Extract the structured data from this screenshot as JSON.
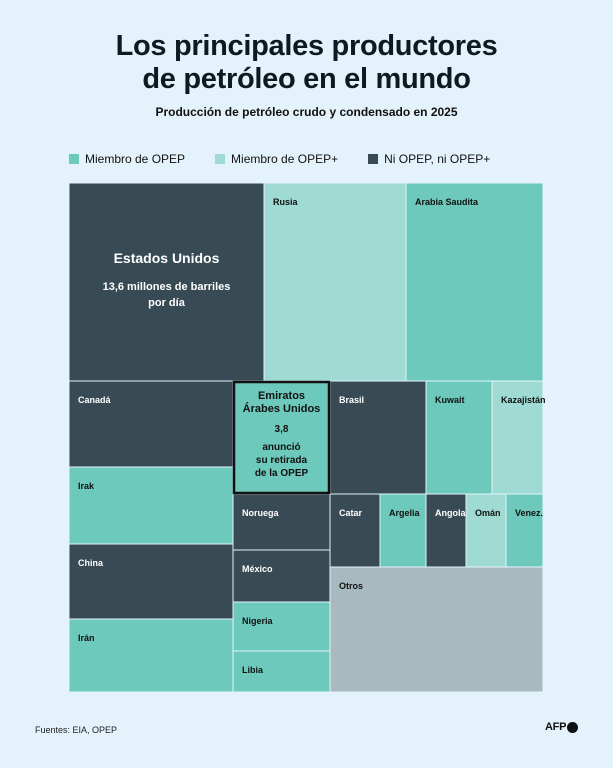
{
  "header": {
    "title_line1": "Los principales productores",
    "title_line2": "de petróleo en el mundo",
    "subtitle": "Producción de petróleo crudo y condensado en 2025"
  },
  "legend": [
    {
      "label": "Miembro de OPEP",
      "color": "#6cc9bb"
    },
    {
      "label": "Miembro de OPEP+",
      "color": "#9fdbd2"
    },
    {
      "label": "Ni OPEP, ni OPEP+",
      "color": "#384a54"
    }
  ],
  "colors": {
    "opep": "#6cc9bb",
    "opep_plus": "#9fdbd2",
    "none": "#384a54",
    "others": "#a8b9bf",
    "border": "#e3f2fb",
    "highlight_border": "#111111"
  },
  "chart_data": {
    "type": "treemap",
    "title": "Los principales productores de petróleo en el mundo",
    "subtitle": "Producción de petróleo crudo y condensado en 2025",
    "unit": "millones de barriles por día",
    "items": [
      {
        "name": "Estados Unidos",
        "group": "none",
        "value_label": "13,6 millones de barriles por día"
      },
      {
        "name": "Rusia",
        "group": "opep_plus"
      },
      {
        "name": "Arabia Saudita",
        "group": "opep"
      },
      {
        "name": "Canadá",
        "group": "none"
      },
      {
        "name": "Emiratos Árabes Unidos",
        "group": "opep",
        "value_label": "3,8",
        "annotation": "anunció su retirada de la OPEP",
        "highlight": true
      },
      {
        "name": "Brasil",
        "group": "none"
      },
      {
        "name": "Kuwait",
        "group": "opep"
      },
      {
        "name": "Kazajistán",
        "group": "opep_plus"
      },
      {
        "name": "Irak",
        "group": "opep"
      },
      {
        "name": "Noruega",
        "group": "none"
      },
      {
        "name": "Catar",
        "group": "none"
      },
      {
        "name": "Argelia",
        "group": "opep"
      },
      {
        "name": "Angola",
        "group": "none"
      },
      {
        "name": "Omán",
        "group": "opep_plus"
      },
      {
        "name": "Venez.",
        "group": "opep"
      },
      {
        "name": "China",
        "group": "none"
      },
      {
        "name": "México",
        "group": "none"
      },
      {
        "name": "Nigeria",
        "group": "opep"
      },
      {
        "name": "Irán",
        "group": "opep"
      },
      {
        "name": "Libia",
        "group": "opep"
      },
      {
        "name": "Otros",
        "group": "others"
      }
    ]
  },
  "footer": {
    "source": "Fuentes: EIA, OPEP",
    "brand": "AFP"
  }
}
